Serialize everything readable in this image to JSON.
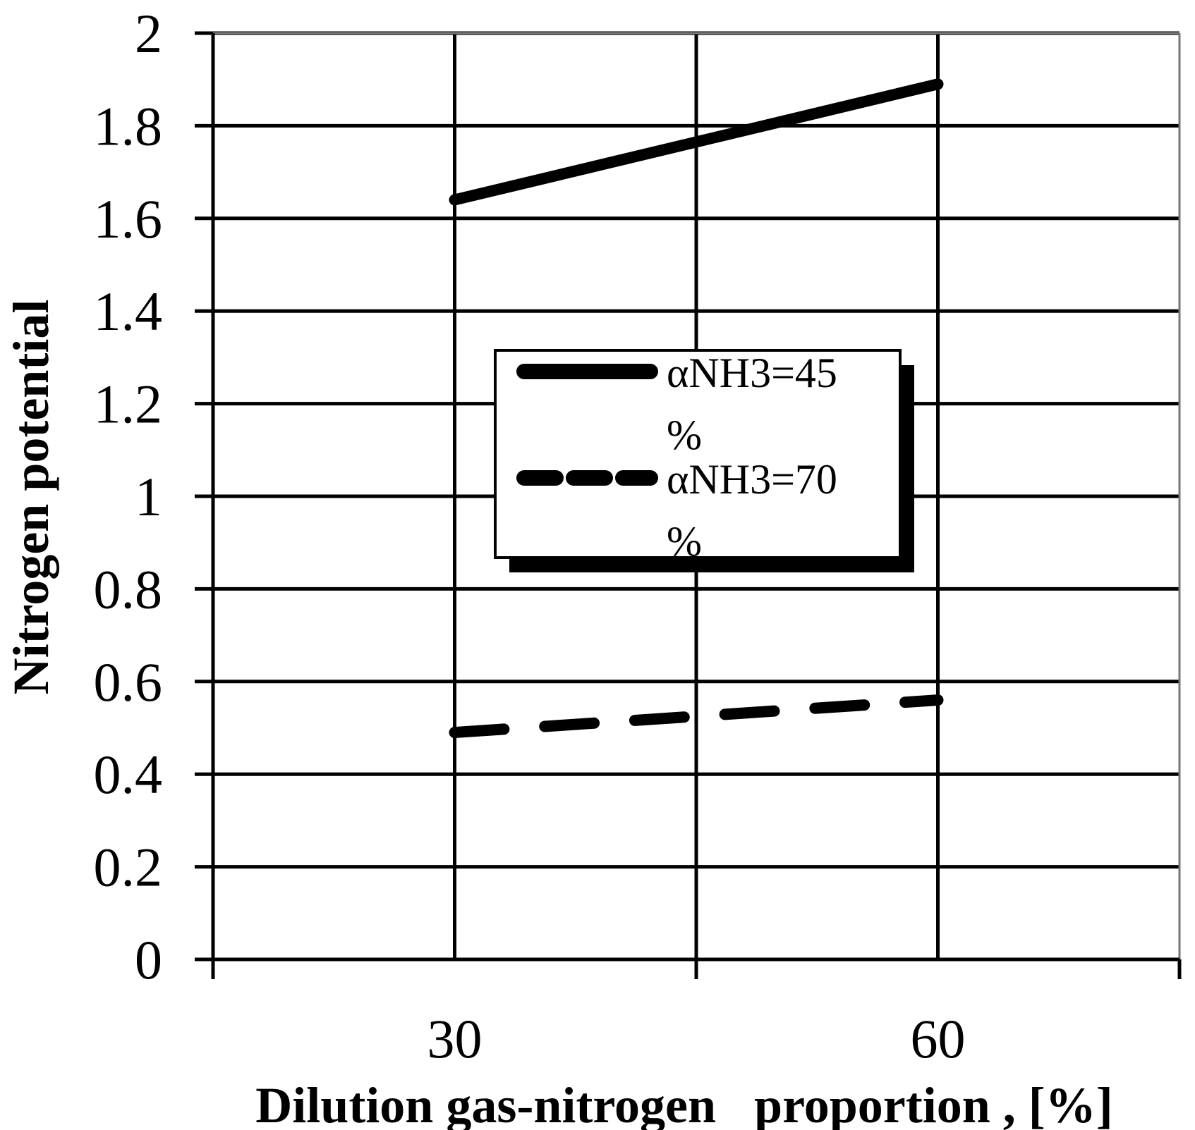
{
  "chart_data": {
    "type": "line",
    "title": "",
    "xlabel": "Dilution gas-nitrogen   proportion , [%]",
    "ylabel": "Nitrogen potential",
    "x_ticks": [
      "30",
      "60"
    ],
    "x_categories": [
      30,
      60
    ],
    "ylim": [
      0,
      2
    ],
    "y_ticks": [
      "0",
      "0.2",
      "0.4",
      "0.6",
      "0.8",
      "1",
      "1.2",
      "1.4",
      "1.6",
      "1.8",
      "2"
    ],
    "grid": true,
    "legend_position": "center",
    "series": [
      {
        "name": "αNH3=45 %",
        "name_lines": [
          "αNH3=45",
          "%"
        ],
        "style": "solid",
        "x": [
          30,
          60
        ],
        "y": [
          1.64,
          1.89
        ]
      },
      {
        "name": "αNH3=70 %",
        "name_lines": [
          "αNH3=70",
          "%"
        ],
        "style": "dashed",
        "x": [
          30,
          60
        ],
        "y": [
          0.49,
          0.56
        ]
      }
    ],
    "colors": {
      "line": "#000000",
      "grid": "#000000",
      "background": "#ffffff"
    }
  }
}
